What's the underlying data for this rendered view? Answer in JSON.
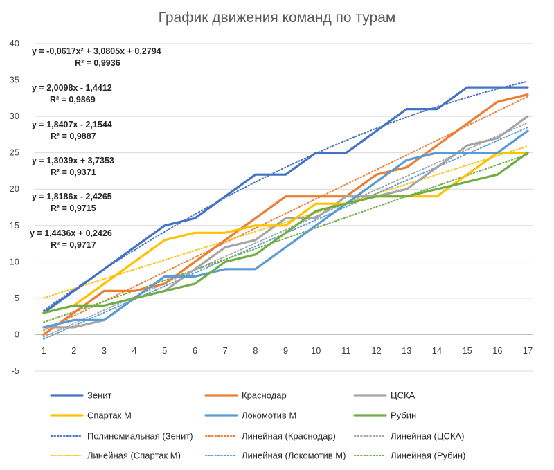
{
  "chart_data": {
    "type": "line",
    "title": "График движения команд по турам",
    "xlabel": "",
    "ylabel": "",
    "ylim": [
      -5,
      40
    ],
    "yticks": [
      -5,
      0,
      5,
      10,
      15,
      20,
      25,
      30,
      35,
      40
    ],
    "grid": true,
    "legend_position": "bottom",
    "x": [
      1,
      2,
      3,
      4,
      5,
      6,
      7,
      8,
      9,
      10,
      11,
      12,
      13,
      14,
      15,
      16,
      17
    ],
    "series": [
      {
        "name": "Зенит",
        "color": "#4472C4",
        "values": [
          3,
          6,
          9,
          12,
          15,
          16,
          19,
          22,
          22,
          25,
          25,
          28,
          31,
          31,
          34,
          34,
          34
        ]
      },
      {
        "name": "Краснодар",
        "color": "#ED7D31",
        "values": [
          0,
          3,
          6,
          6,
          7,
          10,
          13,
          16,
          19,
          19,
          19,
          22,
          23,
          26,
          29,
          32,
          33
        ]
      },
      {
        "name": "ЦСКА",
        "color": "#A5A5A5",
        "values": [
          1,
          1,
          2,
          5,
          6,
          9,
          12,
          13,
          16,
          16,
          19,
          19,
          20,
          23,
          26,
          27,
          30
        ]
      },
      {
        "name": "Спартак М",
        "color": "#FFC000",
        "values": [
          3,
          4,
          7,
          10,
          13,
          14,
          14,
          15,
          15,
          18,
          18,
          19,
          19,
          19,
          22,
          25,
          25
        ]
      },
      {
        "name": "Локомотив М",
        "color": "#5B9BD5",
        "values": [
          1,
          2,
          2,
          5,
          8,
          8,
          9,
          9,
          12,
          15,
          18,
          21,
          24,
          25,
          25,
          25,
          28
        ]
      },
      {
        "name": "Рубин",
        "color": "#70AD47",
        "values": [
          3,
          4,
          4,
          5,
          6,
          7,
          10,
          11,
          14,
          17,
          18,
          19,
          19,
          20,
          21,
          22,
          25
        ]
      }
    ],
    "trendlines": [
      {
        "name": "Полиномиальная (Зенит)",
        "color": "#4472C4",
        "kind": "poly2",
        "coef": [
          -0.0617,
          3.0805,
          0.2794
        ],
        "equation": "y = -0,0617x² + 3,0805x + 0,2794",
        "r2": "R² = 0,9936"
      },
      {
        "name": "Линейная (Краснодар)",
        "color": "#ED7D31",
        "kind": "linear",
        "coef": [
          2.0098,
          -1.4412
        ],
        "equation": "y = 2,0098x - 1,4412",
        "r2": "R² = 0,9869"
      },
      {
        "name": "Линейная (ЦСКА)",
        "color": "#A5A5A5",
        "kind": "linear",
        "coef": [
          1.8407,
          -2.1544
        ],
        "equation": "y = 1,8407x - 2,1544",
        "r2": "R² = 0,9887"
      },
      {
        "name": "Линейная (Спартак М)",
        "color": "#FFC000",
        "kind": "linear",
        "coef": [
          1.3039,
          3.7353
        ],
        "equation": "y = 1,3039x + 3,7353",
        "r2": "R² = 0,9371"
      },
      {
        "name": "Линейная (Локомотив М)",
        "color": "#5B9BD5",
        "kind": "linear",
        "coef": [
          1.8186,
          -2.4265
        ],
        "equation": "y = 1,8186x - 2,4265",
        "r2": "R² = 0,9715"
      },
      {
        "name": "Линейная (Рубин)",
        "color": "#70AD47",
        "kind": "linear",
        "coef": [
          1.4436,
          0.2426
        ],
        "equation": "y = 1,4436x + 0,2426",
        "r2": "R² = 0,9717"
      }
    ]
  }
}
